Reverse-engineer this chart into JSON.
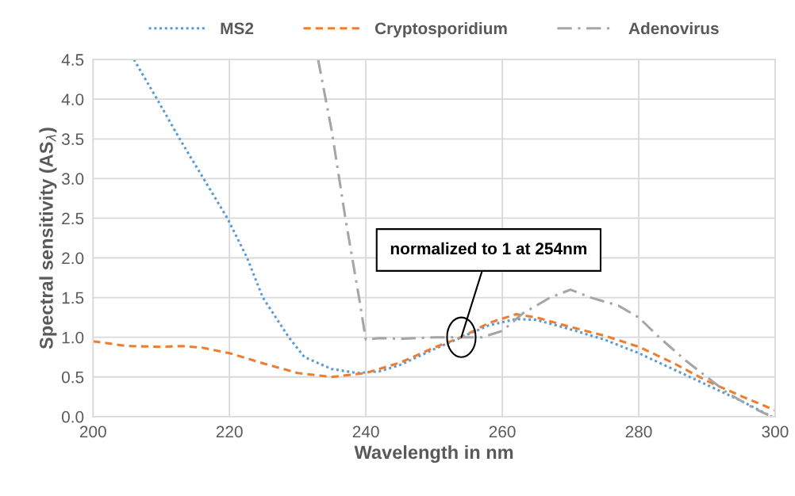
{
  "chart_data": {
    "type": "line",
    "xlabel": "Wavelength in nm",
    "ylabel": "Spectral sensitivity (AS$_{λ}$)",
    "xlim": [
      200,
      300
    ],
    "xticks": [
      200,
      220,
      240,
      260,
      280,
      300
    ],
    "ylim": [
      0,
      4.5
    ],
    "yticks": [
      {
        "value": 0,
        "label": "0.0"
      },
      {
        "value": 0.5,
        "label": "0.5"
      },
      {
        "value": 1,
        "label": "1.0"
      },
      {
        "value": 1.5,
        "label": "1.5"
      },
      {
        "value": 2,
        "label": "2.0"
      },
      {
        "value": 2.5,
        "label": "2.5"
      },
      {
        "value": 3,
        "label": "3.0"
      },
      {
        "value": 3.5,
        "label": "3.5"
      },
      {
        "value": 4,
        "label": "4.0"
      },
      {
        "value": 4.5,
        "label": "4.5"
      }
    ],
    "grid": true,
    "legend": "top",
    "marker": "none",
    "annotations": [
      {
        "text": "normalized to 1 at 254nm",
        "x": 254,
        "y": 1.0
      }
    ],
    "series": [
      {
        "name": "MS2",
        "color": "#5b9bd5",
        "line_style": "dotted",
        "x": [
          206,
          209.4,
          212.7,
          216.2,
          219.7,
          222.6,
          224.9,
          228.7,
          231,
          235,
          238.8,
          242,
          245,
          250,
          254,
          258,
          262,
          265,
          270,
          275,
          280,
          285,
          290,
          295,
          299.5
        ],
        "values": [
          4.5,
          4.0,
          3.5,
          3.0,
          2.5,
          2.0,
          1.5,
          1.0,
          0.75,
          0.6,
          0.55,
          0.57,
          0.65,
          0.85,
          1.0,
          1.15,
          1.23,
          1.22,
          1.1,
          0.97,
          0.8,
          0.6,
          0.4,
          0.2,
          0.0
        ]
      },
      {
        "name": "Cryptosporidium",
        "color": "#ed7d31",
        "line_style": "dashed",
        "x": [
          200,
          205,
          210,
          213,
          216,
          220,
          225,
          230,
          235,
          240,
          245,
          250,
          254,
          258,
          262,
          265,
          270,
          275,
          280,
          285,
          290,
          295,
          300
        ],
        "values": [
          0.95,
          0.89,
          0.88,
          0.89,
          0.87,
          0.8,
          0.67,
          0.55,
          0.5,
          0.55,
          0.68,
          0.87,
          1.0,
          1.18,
          1.29,
          1.25,
          1.13,
          1.02,
          0.88,
          0.68,
          0.45,
          0.26,
          0.08
        ]
      },
      {
        "name": "Adenovirus",
        "color": "#a5a5a5",
        "line_style": "dashdot",
        "x": [
          233,
          235,
          237,
          239,
          240,
          242,
          245,
          250,
          254,
          257,
          260,
          263,
          267,
          270,
          273,
          277,
          280,
          283,
          287,
          290,
          293,
          297,
          299
        ],
        "values": [
          4.5,
          3.6,
          2.5,
          1.5,
          0.97,
          0.99,
          0.98,
          1.0,
          1.0,
          1.0,
          1.08,
          1.3,
          1.5,
          1.6,
          1.5,
          1.4,
          1.25,
          1.0,
          0.7,
          0.5,
          0.3,
          0.1,
          0.02
        ]
      }
    ]
  }
}
